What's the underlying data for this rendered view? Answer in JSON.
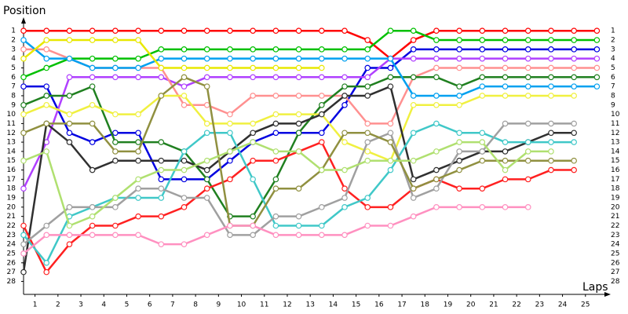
{
  "chart_data": {
    "type": "line",
    "y_label": "Position",
    "x_label": "Laps",
    "x": [
      0,
      1,
      2,
      3,
      4,
      5,
      6,
      7,
      8,
      9,
      10,
      11,
      12,
      13,
      14,
      15,
      16,
      17,
      18,
      19,
      20,
      21,
      22,
      23,
      24,
      25
    ],
    "xlim": [
      0,
      25.5
    ],
    "xticks": [
      {
        "value": 0.5,
        "label": "1"
      },
      {
        "value": 1.5,
        "label": "2"
      },
      {
        "value": 2.5,
        "label": "3"
      },
      {
        "value": 3.5,
        "label": "4"
      },
      {
        "value": 4.5,
        "label": "5"
      },
      {
        "value": 5.5,
        "label": "6"
      },
      {
        "value": 6.5,
        "label": "7"
      },
      {
        "value": 7.5,
        "label": "8"
      },
      {
        "value": 8.5,
        "label": "9"
      },
      {
        "value": 9.5,
        "label": "10"
      },
      {
        "value": 10.5,
        "label": "11"
      },
      {
        "value": 11.5,
        "label": "12"
      },
      {
        "value": 12.5,
        "label": "13"
      },
      {
        "value": 13.5,
        "label": "14"
      },
      {
        "value": 14.5,
        "label": "15"
      },
      {
        "value": 15.5,
        "label": "16"
      },
      {
        "value": 16.5,
        "label": "17"
      },
      {
        "value": 17.5,
        "label": "18"
      },
      {
        "value": 18.5,
        "label": "19"
      },
      {
        "value": 19.5,
        "label": "20"
      },
      {
        "value": 20.5,
        "label": "21"
      },
      {
        "value": 21.5,
        "label": "22"
      },
      {
        "value": 22.5,
        "label": "23"
      },
      {
        "value": 23.5,
        "label": "24"
      },
      {
        "value": 24.5,
        "label": "25"
      }
    ],
    "ylim": [
      29.4,
      -0.2
    ],
    "yticks": [
      1,
      2,
      3,
      4,
      5,
      6,
      7,
      8,
      9,
      10,
      11,
      12,
      13,
      14,
      15,
      16,
      17,
      18,
      19,
      20,
      21,
      22,
      23,
      24,
      25,
      26,
      27,
      28
    ],
    "series": [
      {
        "color": "#ff0000",
        "values": [
          1,
          1,
          1,
          1,
          1,
          1,
          1,
          1,
          1,
          1,
          1,
          1,
          1,
          1,
          1,
          2,
          4,
          2,
          1,
          1,
          1,
          1,
          1,
          1,
          1,
          1
        ]
      },
      {
        "color": "#00c000",
        "values": [
          6,
          5,
          4,
          4,
          4,
          4,
          3,
          3,
          3,
          3,
          3,
          3,
          3,
          3,
          3,
          3,
          1,
          1,
          2,
          2,
          2,
          2,
          2,
          2,
          2,
          2
        ]
      },
      {
        "color": "#0000e0",
        "values": [
          7,
          7,
          12,
          13,
          12,
          12,
          17,
          17,
          17,
          15,
          13,
          12,
          12,
          12,
          9,
          5,
          5,
          3,
          3,
          3,
          3,
          3,
          3,
          3,
          3,
          3
        ]
      },
      {
        "color": "#b040ff",
        "values": [
          18,
          13,
          6,
          6,
          6,
          6,
          6,
          7,
          6,
          6,
          6,
          6,
          6,
          6,
          6,
          6,
          4,
          4,
          4,
          4,
          4,
          4,
          4,
          4,
          4,
          4
        ]
      },
      {
        "color": "#ff9090",
        "values": [
          3,
          3,
          4,
          5,
          5,
          5,
          5,
          9,
          9,
          10,
          8,
          8,
          8,
          8,
          8,
          11,
          11,
          6,
          5,
          5,
          5,
          5,
          5,
          5,
          5,
          5
        ]
      },
      {
        "color": "#208020",
        "values": [
          9,
          8,
          8,
          7,
          13,
          13,
          13,
          14,
          17,
          21,
          21,
          17,
          12,
          9,
          7,
          7,
          6,
          6,
          6,
          7,
          6,
          6,
          6,
          6,
          6,
          6
        ]
      },
      {
        "color": "#00a0f0",
        "values": [
          2,
          4,
          4,
          5,
          5,
          5,
          4,
          4,
          4,
          4,
          4,
          4,
          4,
          4,
          4,
          4,
          4,
          8,
          8,
          8,
          7,
          7,
          7,
          7,
          7,
          7
        ]
      },
      {
        "color": "#e8e800",
        "values": [
          4,
          2,
          2,
          2,
          2,
          2,
          5,
          5,
          5,
          5,
          5,
          5,
          5,
          5,
          null,
          null,
          null,
          null,
          null,
          null,
          null,
          null,
          null,
          null,
          null,
          null
        ]
      },
      {
        "color": "#f0f040",
        "values": [
          10,
          9,
          10,
          9,
          10,
          10,
          8,
          8,
          11,
          11,
          11,
          10,
          10,
          10,
          13,
          14,
          15,
          9,
          9,
          9,
          8,
          8,
          8,
          8,
          8,
          null
        ]
      },
      {
        "color": "#303030",
        "values": [
          27,
          11,
          13,
          16,
          15,
          15,
          15,
          15,
          16,
          14,
          12,
          11,
          11,
          10,
          8,
          8,
          7,
          17,
          16,
          15,
          14,
          14,
          13,
          12,
          12,
          null
        ]
      },
      {
        "color": "#ff2020",
        "values": [
          22,
          27,
          24,
          22,
          22,
          21,
          21,
          20,
          18,
          17,
          15,
          15,
          14,
          13,
          18,
          20,
          20,
          18,
          17,
          18,
          18,
          17,
          17,
          16,
          16,
          null
        ]
      },
      {
        "color": "#40c8c8",
        "values": [
          23,
          26,
          21,
          20,
          19,
          19,
          19,
          14,
          12,
          12,
          17,
          22,
          22,
          22,
          20,
          19,
          16,
          12,
          11,
          12,
          12,
          13,
          13,
          13,
          13,
          null
        ]
      },
      {
        "color": "#a0a0a0",
        "values": [
          24,
          22,
          20,
          20,
          20,
          18,
          18,
          19,
          19,
          23,
          23,
          21,
          21,
          20,
          19,
          13,
          12,
          19,
          18,
          14,
          14,
          11,
          11,
          11,
          11,
          null
        ]
      },
      {
        "color": "#909040",
        "values": [
          12,
          11,
          11,
          11,
          14,
          14,
          8,
          6,
          7,
          22,
          22,
          18,
          18,
          16,
          12,
          12,
          13,
          18,
          17,
          16,
          15,
          15,
          15,
          15,
          15,
          null
        ]
      },
      {
        "color": "#ff90c0",
        "values": [
          25,
          23,
          23,
          23,
          23,
          23,
          24,
          24,
          23,
          22,
          22,
          23,
          23,
          23,
          23,
          22,
          22,
          21,
          20,
          20,
          20,
          20,
          20,
          null,
          null,
          null
        ]
      },
      {
        "color": "#b0e070",
        "values": [
          15,
          14,
          22,
          21,
          19,
          17,
          16,
          16,
          15,
          14,
          13,
          14,
          14,
          16,
          16,
          15,
          15,
          15,
          14,
          13,
          13,
          16,
          14,
          14,
          null,
          null
        ]
      }
    ]
  }
}
